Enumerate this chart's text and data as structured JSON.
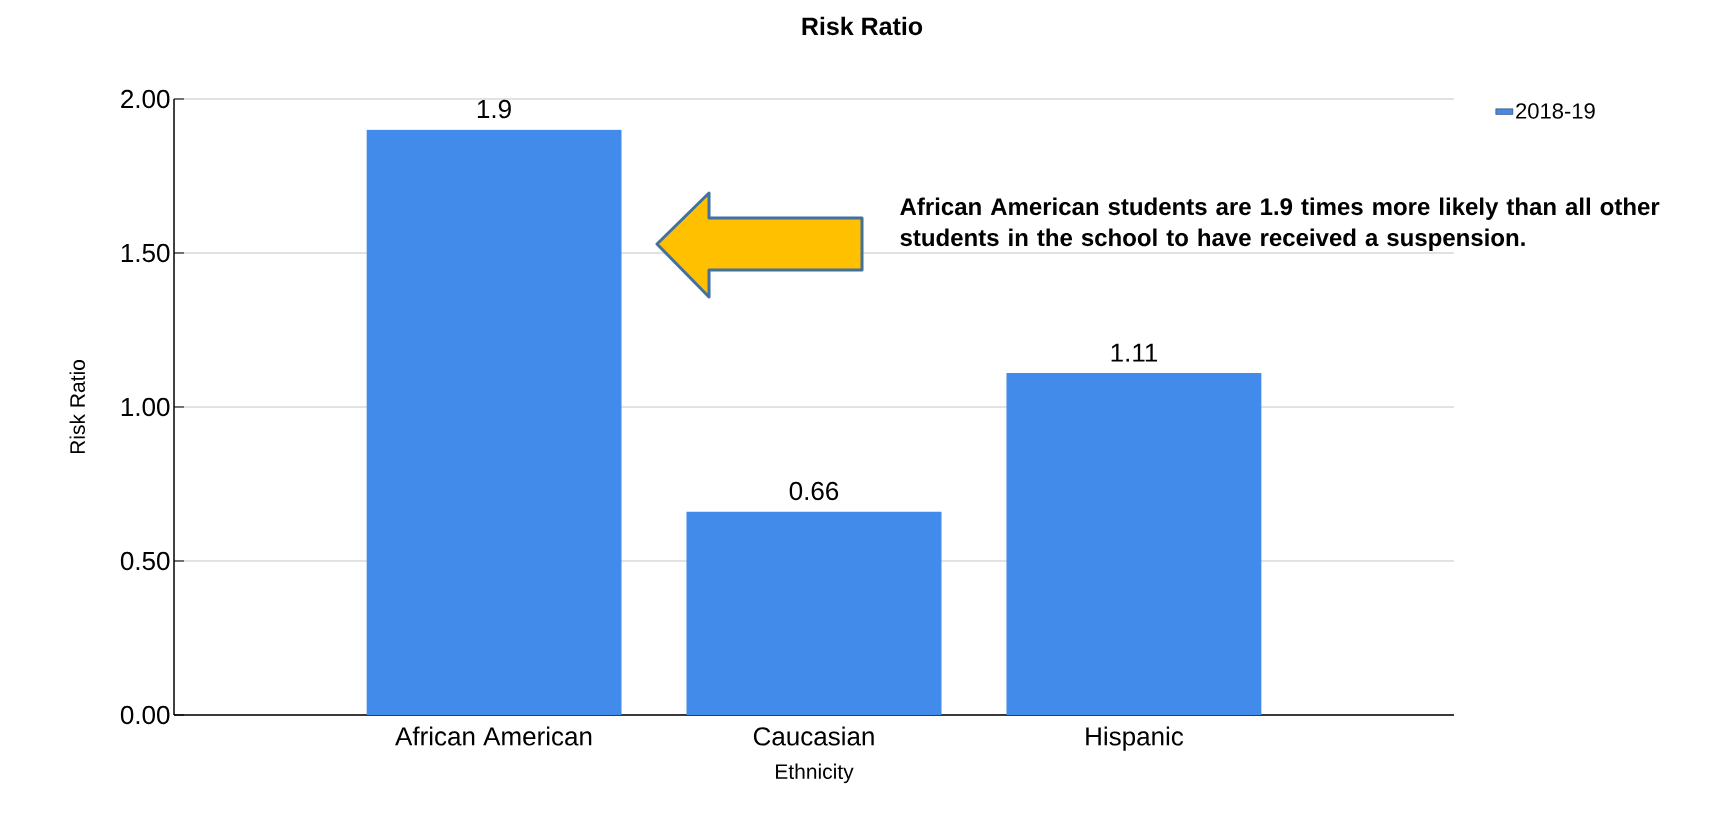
{
  "chart_data": {
    "type": "bar",
    "title": "Risk Ratio",
    "xlabel": "Ethnicity",
    "ylabel": "Risk Ratio",
    "categories": [
      "African American",
      "Caucasian",
      "Hispanic"
    ],
    "series": [
      {
        "name": "2018-19",
        "color": "#428bea",
        "values": [
          1.9,
          0.66,
          1.11
        ]
      }
    ],
    "ylim": [
      0,
      2
    ],
    "yticks": [
      {
        "value": 0,
        "label": "0.00"
      },
      {
        "value": 0.5,
        "label": "0.50"
      },
      {
        "value": 1,
        "label": "1.00"
      },
      {
        "value": 1.5,
        "label": "1.50"
      },
      {
        "value": 2,
        "label": "2.00"
      }
    ],
    "grid": "y",
    "legend": "top right",
    "data_labels": true,
    "annotations": [
      "African American students are 1.9 times more likely than all other students in the school to have received a suspension."
    ]
  }
}
